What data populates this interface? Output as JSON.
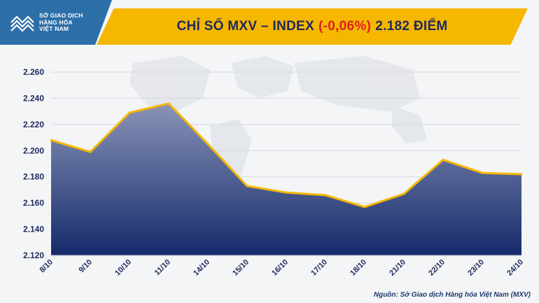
{
  "header": {
    "logo_lines": [
      "SỞ GIAO DỊCH",
      "HÀNG HÓA",
      "VIỆT NAM"
    ],
    "title_prefix": "CHỈ SỐ MXV – INDEX",
    "title_change": "(-0,06%)",
    "title_suffix": "2.182 ĐIỂM"
  },
  "source": "Nguồn: Sở Giao dịch Hàng hóa Việt Nam (MXV)",
  "colors": {
    "area_top": "#8a94b8",
    "area_bottom": "#152a6b",
    "line": "#f5b700",
    "title_bar": "#f5b700",
    "negative": "#e02020"
  },
  "chart_data": {
    "type": "area",
    "title": "CHỈ SỐ MXV – INDEX (-0,06%) 2.182 ĐIỂM",
    "categories": [
      "8/10",
      "9/10",
      "10/10",
      "11/10",
      "14/10",
      "15/10",
      "16/10",
      "17/10",
      "18/10",
      "21/10",
      "22/10",
      "23/10",
      "24/10"
    ],
    "series": [
      {
        "name": "MXV-Index",
        "values": [
          2208,
          2199,
          2229,
          2236,
          2205,
          2173,
          2168,
          2166,
          2157,
          2167,
          2193,
          2183,
          2182
        ]
      }
    ],
    "ylim": [
      2120,
      2260
    ],
    "yticks": [
      2120,
      2140,
      2160,
      2180,
      2200,
      2220,
      2240,
      2260
    ],
    "ytick_labels": [
      "2.120",
      "2.140",
      "2.160",
      "2.180",
      "2.200",
      "2.220",
      "2.240",
      "2.260"
    ],
    "grid": true,
    "xlabel": "",
    "ylabel": ""
  }
}
